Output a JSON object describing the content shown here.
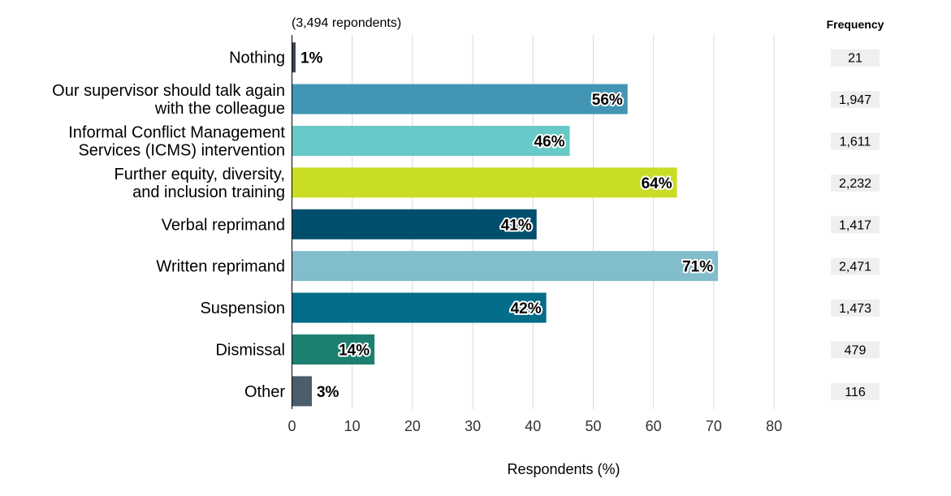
{
  "chart_data": {
    "type": "bar",
    "orientation": "horizontal",
    "note": "(3,494 repondents)",
    "xlabel": "Respondents (%)",
    "xlim": [
      0,
      80
    ],
    "xticks": [
      0,
      10,
      20,
      30,
      40,
      50,
      60,
      70,
      80
    ],
    "grid": true,
    "categories": [
      [
        "Nothing"
      ],
      [
        "Our supervisor should talk again",
        "with the colleague"
      ],
      [
        "Informal Conflict Management",
        "Services (ICMS) intervention"
      ],
      [
        "Further equity, diversity,",
        "and inclusion training"
      ],
      [
        "Verbal reprimand"
      ],
      [
        "Written reprimand"
      ],
      [
        "Suspension"
      ],
      [
        "Dismissal"
      ],
      [
        "Other"
      ]
    ],
    "values": [
      0.6,
      55.7,
      46.1,
      63.9,
      40.6,
      70.7,
      42.2,
      13.7,
      3.3
    ],
    "value_labels": [
      "1%",
      "56%",
      "46%",
      "64%",
      "41%",
      "71%",
      "42%",
      "14%",
      "3%"
    ],
    "colors": [
      "#3a4550",
      "#4296b4",
      "#67c9c8",
      "#c9dd25",
      "#004f6d",
      "#82bdcc",
      "#036d8a",
      "#1d7f6f",
      "#4c5d6b"
    ],
    "frequency_header": "Frequency",
    "frequency": [
      "21",
      "1,947",
      "1,611",
      "2,232",
      "1,417",
      "2,471",
      "1,473",
      "479",
      "116"
    ],
    "frequency_box_color": "#efefef",
    "gridline_color": "#d9d9d9"
  }
}
